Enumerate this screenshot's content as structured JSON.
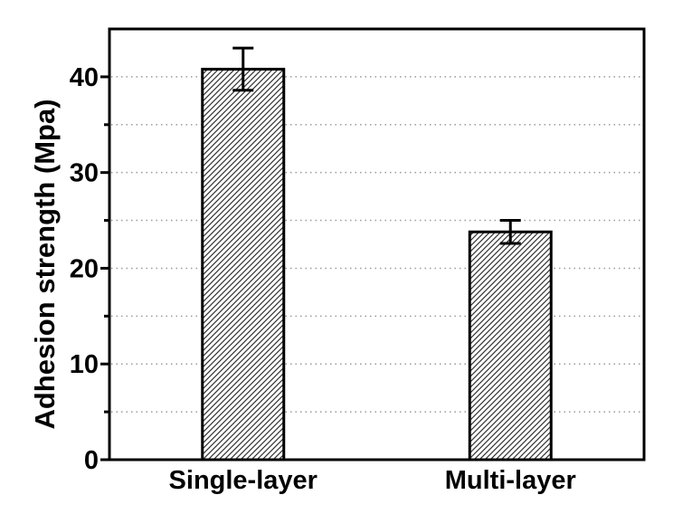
{
  "chart_data": {
    "type": "bar",
    "categories": [
      "Single-layer",
      "Multi-layer"
    ],
    "values": [
      40.8,
      23.8
    ],
    "error_bars": [
      2.2,
      1.2
    ],
    "title": "",
    "xlabel": "",
    "ylabel": "Adhesion strength (Mpa)",
    "ylim": [
      0,
      45
    ],
    "yticks_major": [
      0,
      10,
      20,
      30,
      40
    ],
    "ytick_labels": [
      "0",
      "10",
      "20",
      "30",
      "40"
    ],
    "yticks_minor": [
      5,
      15,
      25,
      35
    ],
    "gridline_values": [
      5,
      10,
      15,
      20,
      25,
      30,
      35,
      40
    ],
    "grid_style": "dotted horizontal",
    "legend": "none",
    "bar_fill": "white with black diagonal hatch",
    "colors": {
      "axis": "#000000",
      "text": "#000000",
      "grid": "#9b9b9b",
      "hatch": "#333333",
      "background": "#ffffff"
    }
  }
}
